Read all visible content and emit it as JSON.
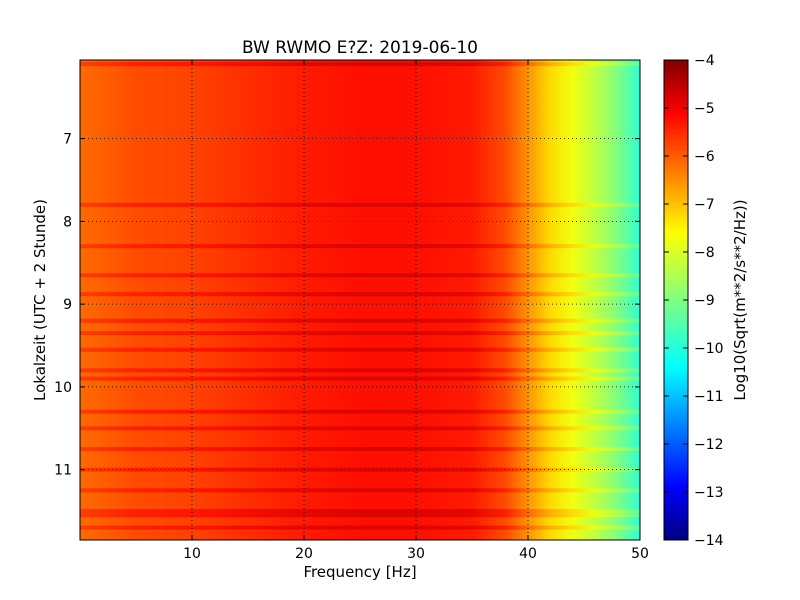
{
  "chart_data": {
    "type": "heatmap",
    "title": "BW RWMO E?Z: 2019-06-10",
    "xlabel": "Frequency [Hz]",
    "ylabel": "Lokalzeit (UTC + 2 Stunde)",
    "xlim": [
      0,
      50
    ],
    "ylim": [
      11.85,
      6.05
    ],
    "y_inverted": true,
    "xticks": [
      10,
      20,
      30,
      40,
      50
    ],
    "yticks": [
      7,
      8,
      9,
      10,
      11
    ],
    "grid": true,
    "grid_style": "dotted",
    "colorbar": {
      "label": "Log10(Sqrt(m**2/s**2/Hz))",
      "range": [
        -14,
        -4
      ],
      "ticks": [
        -4,
        -5,
        -6,
        -7,
        -8,
        -9,
        -10,
        -11,
        -12,
        -13,
        -14
      ],
      "colormap": "jet",
      "location": "right"
    },
    "spectral_profile": {
      "frequency_hz": [
        0,
        5,
        10,
        15,
        20,
        25,
        30,
        35,
        38,
        40,
        42,
        44,
        46,
        48,
        50
      ],
      "log10_amplitude": [
        -6.3,
        -6.0,
        -5.9,
        -5.7,
        -5.5,
        -5.4,
        -5.4,
        -5.5,
        -6.0,
        -6.7,
        -7.4,
        -7.9,
        -8.4,
        -9.0,
        -9.8
      ]
    },
    "high_energy_bands_hours": [
      6.1,
      7.8,
      8.3,
      8.65,
      8.88,
      9.2,
      9.35,
      9.55,
      9.8,
      9.9,
      10.3,
      10.5,
      10.75,
      11.0,
      11.25,
      11.5,
      11.55,
      11.7
    ]
  }
}
